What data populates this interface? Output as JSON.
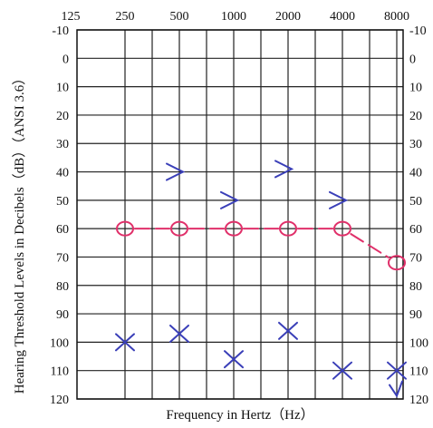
{
  "chart_data": {
    "type": "scatter",
    "xlabel": "Frequency in Hertz（Hz）",
    "ylabel": "Hearing Threshold Levels in Decibels（dB）（ANSI 3.6）",
    "x_ticks": [
      "125",
      "250",
      "500",
      "1000",
      "2000",
      "4000",
      "8000"
    ],
    "y_ticks": [
      "-10",
      "0",
      "10",
      "20",
      "30",
      "40",
      "50",
      "60",
      "70",
      "80",
      "90",
      "100",
      "110",
      "120"
    ],
    "ylim": [
      -10,
      120
    ],
    "y_inverted": true,
    "x_scale": "log2",
    "grid": true,
    "series": [
      {
        "marker": "circle",
        "color": "#e0306a",
        "connected": "dashed",
        "points": [
          {
            "x": 250,
            "y": 60
          },
          {
            "x": 500,
            "y": 60
          },
          {
            "x": 1000,
            "y": 60
          },
          {
            "x": 2000,
            "y": 60
          },
          {
            "x": 4000,
            "y": 60
          },
          {
            "x": 8000,
            "y": 72
          }
        ]
      },
      {
        "marker": "greater-than",
        "color": "#3a3fb8",
        "connected": "none",
        "points": [
          {
            "x": 500,
            "y": 40
          },
          {
            "x": 1000,
            "y": 50
          },
          {
            "x": 2000,
            "y": 39
          },
          {
            "x": 4000,
            "y": 50
          }
        ]
      },
      {
        "marker": "x",
        "color": "#3a3fb8",
        "connected": "none",
        "points": [
          {
            "x": 250,
            "y": 100
          },
          {
            "x": 500,
            "y": 97
          },
          {
            "x": 1000,
            "y": 106
          },
          {
            "x": 2000,
            "y": 96
          },
          {
            "x": 4000,
            "y": 110
          },
          {
            "x": 8000,
            "y": 110
          }
        ]
      },
      {
        "marker": "checkmark",
        "color": "#3a3fb8",
        "connected": "none",
        "points": [
          {
            "x": 8000,
            "y": 117
          }
        ]
      }
    ]
  }
}
